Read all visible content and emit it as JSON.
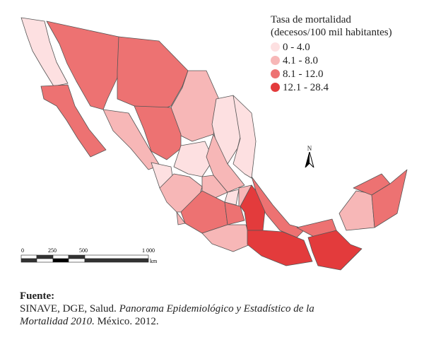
{
  "legend": {
    "title_line1": "Tasa de mortalidad",
    "title_line2": "(decesos/100 mil habitantes)",
    "classes": [
      {
        "label": "0 - 4.0",
        "color": "#fde0e1"
      },
      {
        "label": "4.1 - 8.0",
        "color": "#f7b7b7"
      },
      {
        "label": "8.1 - 12.0",
        "color": "#ed7272"
      },
      {
        "label": "12.1 - 28.4",
        "color": "#e33b3c"
      }
    ]
  },
  "states": [
    {
      "name": "Baja California",
      "class": 0
    },
    {
      "name": "Baja California Sur",
      "class": 2
    },
    {
      "name": "Sonora",
      "class": 2
    },
    {
      "name": "Chihuahua",
      "class": 2
    },
    {
      "name": "Coahuila",
      "class": 1
    },
    {
      "name": "Nuevo León",
      "class": 0
    },
    {
      "name": "Tamaulipas",
      "class": 0
    },
    {
      "name": "Sinaloa",
      "class": 1
    },
    {
      "name": "Durango",
      "class": 2
    },
    {
      "name": "Zacatecas",
      "class": 0
    },
    {
      "name": "San Luis Potosí",
      "class": 1
    },
    {
      "name": "Nayarit",
      "class": 0
    },
    {
      "name": "Jalisco",
      "class": 1
    },
    {
      "name": "Guanajuato",
      "class": 1
    },
    {
      "name": "Querétaro",
      "class": 0
    },
    {
      "name": "Hidalgo",
      "class": 1
    },
    {
      "name": "Michoacán",
      "class": 2
    },
    {
      "name": "Estado de México",
      "class": 2
    },
    {
      "name": "Guerrero",
      "class": 1
    },
    {
      "name": "Puebla",
      "class": 3
    },
    {
      "name": "Veracruz",
      "class": 2
    },
    {
      "name": "Oaxaca",
      "class": 3
    },
    {
      "name": "Tabasco",
      "class": 2
    },
    {
      "name": "Chiapas",
      "class": 3
    },
    {
      "name": "Campeche",
      "class": 1
    },
    {
      "name": "Yucatán",
      "class": 2
    },
    {
      "name": "Quintana Roo",
      "class": 2
    },
    {
      "name": "Colima",
      "class": 1
    }
  ],
  "north_label": "N",
  "scale": {
    "ticks": [
      "0",
      "250",
      "500",
      "1 000"
    ],
    "unit": "km"
  },
  "source": {
    "heading": "Fuente:",
    "text1": "SINAVE, DGE, Salud. ",
    "italic1": "Panorama Epidemiológico y Estadístico de la",
    "italic2": "Mortalidad 2010.",
    "text2": " México. 2012."
  }
}
